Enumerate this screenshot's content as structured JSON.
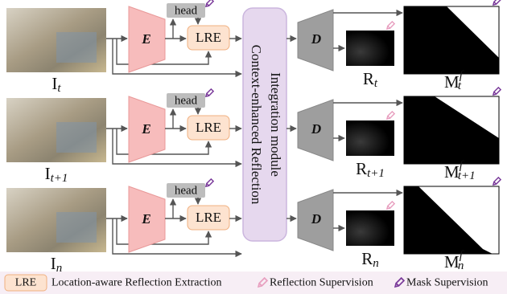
{
  "rows": [
    {
      "encoder": "E",
      "head": "head",
      "lre": "LRE",
      "decoder": "D",
      "input": {
        "base": "I",
        "sub": "t"
      },
      "reflection": {
        "base": "R",
        "sub": "t"
      },
      "mask": {
        "base": "M",
        "sub": "t",
        "sup": "f"
      }
    },
    {
      "encoder": "E",
      "head": "head",
      "lre": "LRE",
      "decoder": "D",
      "input": {
        "base": "I",
        "sub": "t+1"
      },
      "reflection": {
        "base": "R",
        "sub": "t+1"
      },
      "mask": {
        "base": "M",
        "sub": "t+1",
        "sup": "f"
      }
    },
    {
      "encoder": "E",
      "head": "head",
      "lre": "LRE",
      "decoder": "D",
      "input": {
        "base": "I",
        "sub": "n"
      },
      "reflection": {
        "base": "R",
        "sub": "n"
      },
      "mask": {
        "base": "M",
        "sub": "n",
        "sup": "f"
      }
    }
  ],
  "module": {
    "lines": [
      "Context-enhanced Reflection",
      "Integration module"
    ]
  },
  "legend": {
    "lre_key": "LRE",
    "lre_text": "Location-aware Reflection Extraction",
    "reflection_supervision": "Reflection Supervision",
    "mask_supervision": "Mask Supervision"
  }
}
